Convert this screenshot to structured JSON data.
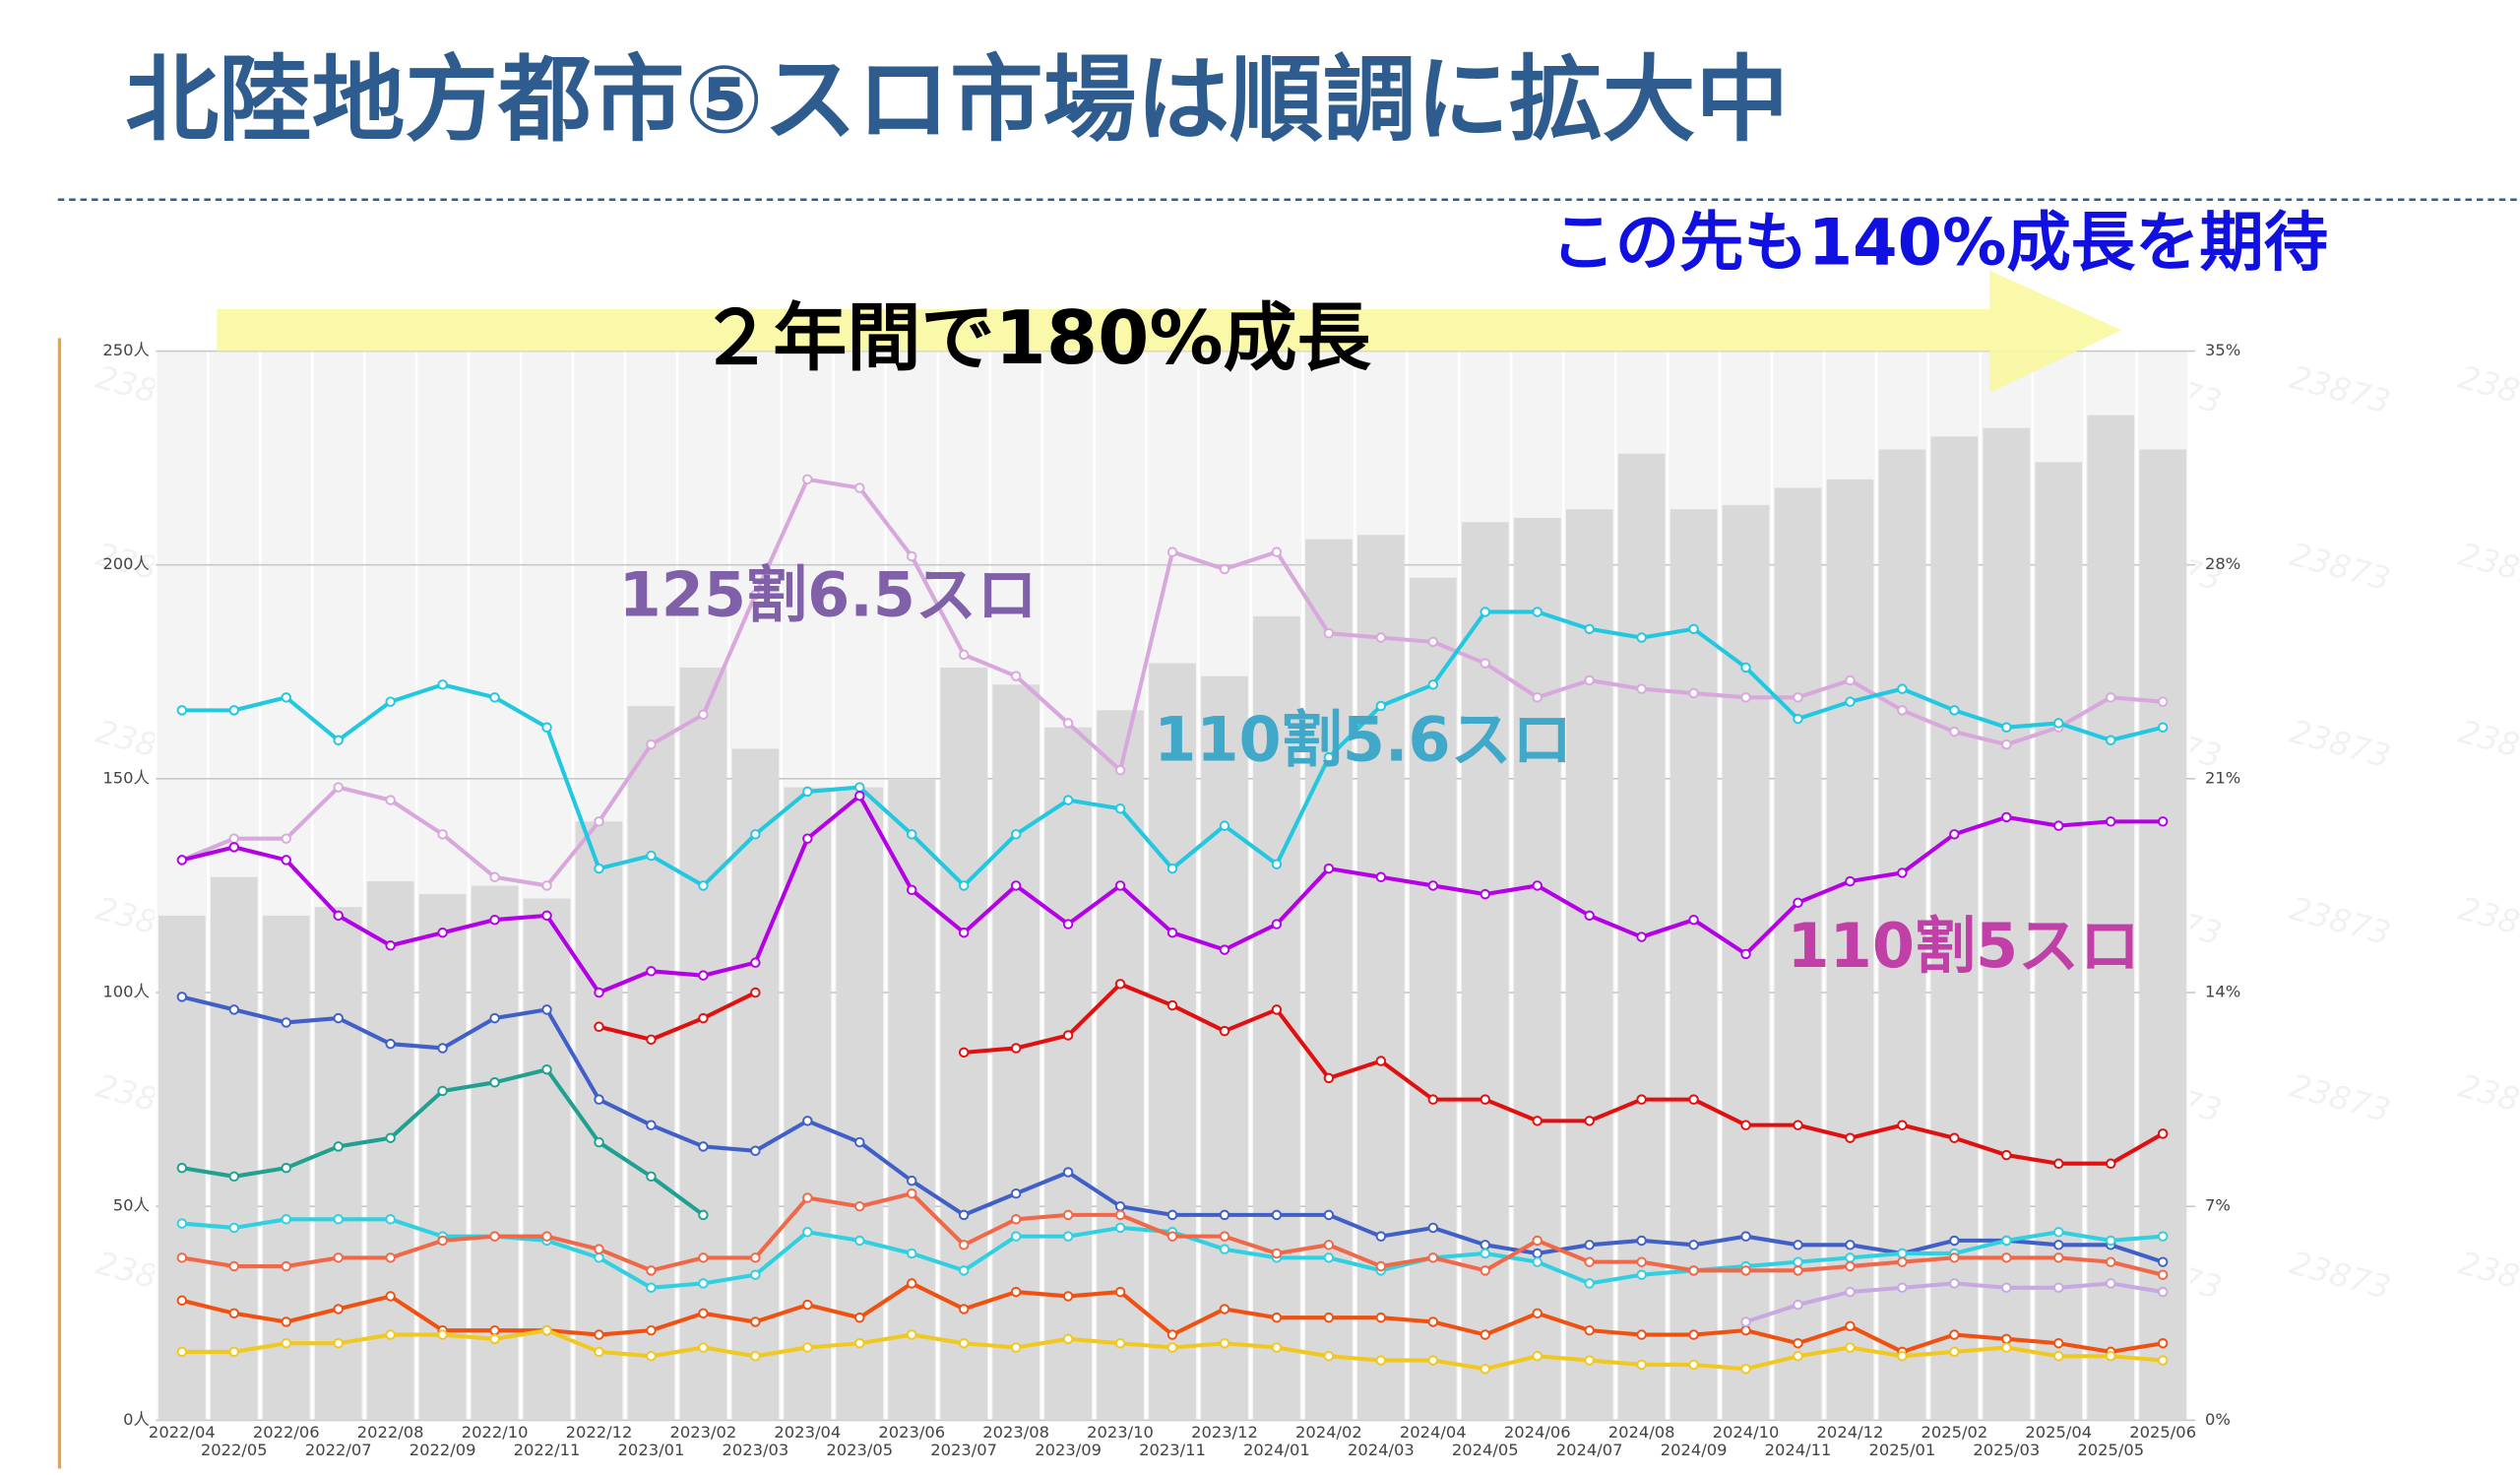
{
  "chart_data": {
    "type": "bar",
    "title": "北陸地方都市⑤スロ市場は順調に拡大中",
    "annotations": [
      "この先も140%成長を期待",
      "２年間で180%成長",
      "125割6.5スロ",
      "110割5.6スロ",
      "110割5スロ"
    ],
    "watermark": "23873",
    "categories": [
      "2022/04",
      "2022/05",
      "2022/06",
      "2022/07",
      "2022/08",
      "2022/09",
      "2022/10",
      "2022/11",
      "2022/12",
      "2023/01",
      "2023/02",
      "2023/03",
      "2023/04",
      "2023/05",
      "2023/06",
      "2023/07",
      "2023/08",
      "2023/09",
      "2023/10",
      "2023/11",
      "2023/12",
      "2024/01",
      "2024/02",
      "2024/03",
      "2024/04",
      "2024/05",
      "2024/06",
      "2024/07",
      "2024/08",
      "2024/09",
      "2024/10",
      "2024/11",
      "2024/12",
      "2025/01",
      "2025/02",
      "2025/03",
      "2025/04",
      "2025/05",
      "2025/06"
    ],
    "values": [
      118,
      127,
      118,
      120,
      126,
      123,
      125,
      122,
      140,
      167,
      176,
      157,
      148,
      148,
      150,
      176,
      172,
      162,
      166,
      177,
      174,
      188,
      206,
      207,
      197,
      210,
      211,
      213,
      226,
      213,
      214,
      218,
      220,
      227,
      230,
      232,
      224,
      235,
      227
    ],
    "color": "#d9d9d9",
    "series": [
      {
        "name": "125割6.5スロ",
        "color": "#d8a8dc",
        "values": [
          131,
          136,
          136,
          148,
          145,
          137,
          127,
          125,
          140,
          158,
          165,
          193,
          220,
          218,
          202,
          179,
          174,
          163,
          152,
          203,
          199,
          203,
          184,
          183,
          182,
          177,
          169,
          173,
          171,
          170,
          169,
          169,
          173,
          166,
          161,
          158,
          162,
          169,
          168
        ]
      },
      {
        "name": "110割5.6スロ",
        "color": "#22c8e0",
        "values": [
          166,
          166,
          169,
          159,
          168,
          172,
          169,
          162,
          129,
          132,
          125,
          137,
          147,
          148,
          137,
          125,
          137,
          145,
          143,
          129,
          139,
          130,
          155,
          167,
          172,
          189,
          189,
          185,
          183,
          185,
          176,
          164,
          168,
          171,
          166,
          162,
          163,
          159,
          162
        ]
      },
      {
        "name": "110割5スロ",
        "color": "#b400e6",
        "values": [
          131,
          134,
          131,
          118,
          111,
          114,
          117,
          118,
          100,
          105,
          104,
          107,
          136,
          146,
          124,
          114,
          125,
          116,
          125,
          114,
          110,
          116,
          129,
          127,
          125,
          123,
          125,
          118,
          113,
          117,
          109,
          121,
          126,
          128,
          137,
          141,
          139,
          140,
          140
        ]
      },
      {
        "color": "#4060c8",
        "values": [
          99,
          96,
          93,
          94,
          88,
          87,
          94,
          96,
          75,
          69,
          64,
          63,
          70,
          65,
          56,
          48,
          53,
          58,
          50,
          48,
          48,
          48,
          48,
          43,
          45,
          41,
          39,
          41,
          42,
          41,
          43,
          41,
          41,
          39,
          42,
          42,
          41,
          41,
          37
        ]
      },
      {
        "color": "#e01010",
        "values": [
          null,
          null,
          null,
          null,
          null,
          null,
          null,
          null,
          92,
          89,
          94,
          100,
          null,
          null,
          null,
          86,
          87,
          90,
          102,
          97,
          91,
          96,
          80,
          84,
          75,
          75,
          70,
          70,
          75,
          75,
          69,
          69,
          66,
          69,
          66,
          62,
          60,
          60,
          67
        ]
      },
      {
        "color": "#20a090",
        "values": [
          59,
          57,
          59,
          64,
          66,
          77,
          79,
          82,
          65,
          57,
          48,
          null,
          null,
          null,
          null,
          null,
          null,
          null,
          null,
          null,
          null,
          null,
          null,
          null,
          null,
          null,
          null,
          null,
          null,
          null,
          null,
          null,
          null,
          null,
          null,
          null,
          null,
          null,
          null
        ]
      },
      {
        "color": "#30d0e0",
        "values": [
          46,
          45,
          47,
          47,
          47,
          43,
          43,
          42,
          38,
          31,
          32,
          34,
          44,
          42,
          39,
          35,
          43,
          43,
          45,
          44,
          40,
          38,
          38,
          35,
          38,
          39,
          37,
          32,
          34,
          35,
          36,
          37,
          38,
          39,
          39,
          42,
          44,
          42,
          43
        ]
      },
      {
        "color": "#f06848",
        "values": [
          38,
          36,
          36,
          38,
          38,
          42,
          43,
          43,
          40,
          35,
          38,
          38,
          52,
          50,
          53,
          41,
          47,
          48,
          48,
          43,
          43,
          39,
          41,
          36,
          38,
          35,
          42,
          37,
          37,
          35,
          35,
          35,
          36,
          37,
          38,
          38,
          38,
          37,
          34
        ]
      },
      {
        "color": "#f05010",
        "values": [
          28,
          25,
          23,
          26,
          29,
          21,
          21,
          21,
          20,
          21,
          25,
          23,
          27,
          24,
          32,
          26,
          30,
          29,
          30,
          20,
          26,
          24,
          24,
          24,
          23,
          20,
          25,
          21,
          20,
          20,
          21,
          18,
          22,
          16,
          20,
          19,
          18,
          16,
          18
        ]
      },
      {
        "color": "#f0c820",
        "values": [
          16,
          16,
          18,
          18,
          20,
          20,
          19,
          21,
          16,
          15,
          17,
          15,
          17,
          18,
          20,
          18,
          17,
          19,
          18,
          17,
          18,
          17,
          15,
          14,
          14,
          12,
          15,
          14,
          13,
          13,
          12,
          15,
          17,
          15,
          16,
          17,
          15,
          15,
          14
        ]
      },
      {
        "color": "#c8a8e0",
        "values": [
          null,
          null,
          null,
          null,
          null,
          null,
          null,
          null,
          null,
          null,
          null,
          null,
          null,
          null,
          null,
          null,
          null,
          null,
          null,
          null,
          null,
          null,
          null,
          null,
          null,
          null,
          null,
          null,
          null,
          null,
          23,
          27,
          30,
          31,
          32,
          31,
          31,
          32,
          30
        ]
      }
    ],
    "ylim": [
      0,
      250
    ],
    "yticks": [
      {
        "value": 0,
        "label": "0人"
      },
      {
        "value": 50,
        "label": "50人"
      },
      {
        "value": 100,
        "label": "100人"
      },
      {
        "value": 150,
        "label": "150人"
      },
      {
        "value": 200,
        "label": "200人"
      },
      {
        "value": 250,
        "label": "250人"
      }
    ],
    "y2lim": [
      0,
      35
    ],
    "y2ticks": [
      {
        "value": 0,
        "label": "0%"
      },
      {
        "value": 7,
        "label": "7%"
      },
      {
        "value": 14,
        "label": "14%"
      },
      {
        "value": 21,
        "label": "21%"
      },
      {
        "value": 28,
        "label": "28%"
      },
      {
        "value": 35,
        "label": "35%"
      }
    ],
    "grid": true
  }
}
